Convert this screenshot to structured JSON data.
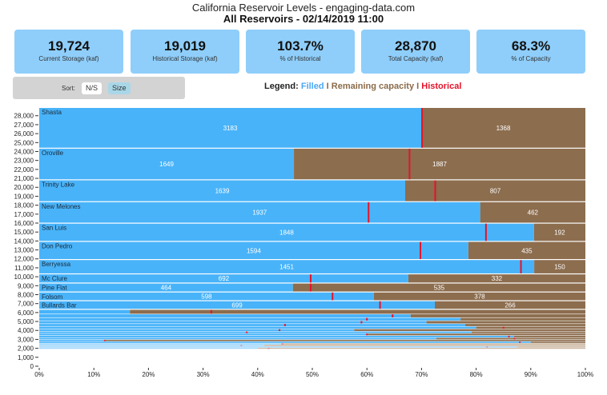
{
  "header": {
    "title": "California Reservoir Levels - engaging-data.com",
    "subtitle": "All Reservoirs - 02/14/2019 11:00"
  },
  "kpis": [
    {
      "value": "19,724",
      "label": "Current Storage (kaf)"
    },
    {
      "value": "19,019",
      "label": "Historical Storage (kaf)"
    },
    {
      "value": "103.7%",
      "label": "% of Historical"
    },
    {
      "value": "28,870",
      "label": "Total Capacity (kaf)"
    },
    {
      "value": "68.3%",
      "label": "% of Capacity"
    }
  ],
  "sort": {
    "label": "Sort:",
    "options": [
      "N/S",
      "Size"
    ],
    "selected": "Size"
  },
  "legend": {
    "prefix": "Legend:",
    "filled": "Filled",
    "separator": "I",
    "remaining": "Remaining capacity",
    "historical": "Historical"
  },
  "colors": {
    "filled": "#48b3f9",
    "remaining": "#8c6d4e",
    "historical": "#e5132a",
    "filled_small": "#8fd0fb",
    "remaining_small": "#c4ab92"
  },
  "chart_data": {
    "type": "bar",
    "orientation": "horizontal-stacked-marimekko",
    "xlabel": "",
    "ylabel": "",
    "x_ticks": [
      "0%",
      "10%",
      "20%",
      "30%",
      "40%",
      "50%",
      "60%",
      "70%",
      "80%",
      "90%",
      "100%"
    ],
    "xlim": [
      0,
      100
    ],
    "y_ticks": [
      "0",
      "1,000",
      "2,000",
      "3,000",
      "4,000",
      "5,000",
      "6,000",
      "7,000",
      "8,000",
      "9,000",
      "10,000",
      "11,000",
      "12,000",
      "13,000",
      "14,000",
      "15,000",
      "16,000",
      "17,000",
      "18,000",
      "19,000",
      "20,000",
      "21,000",
      "22,000",
      "23,000",
      "24,000",
      "25,000",
      "26,000",
      "27,000",
      "28,000"
    ],
    "ylim": [
      0,
      28870
    ],
    "reservoirs": [
      {
        "name": "Shasta",
        "filled": 3183,
        "remaining": 1368,
        "historical_pct": 70.1,
        "show_labels": true
      },
      {
        "name": "Oroville",
        "filled": 1649,
        "remaining": 1887,
        "historical_pct": 67.8,
        "show_labels": true
      },
      {
        "name": "Trinity Lake",
        "filled": 1639,
        "remaining": 807,
        "historical_pct": 72.5,
        "show_labels": true
      },
      {
        "name": "New Melones",
        "filled": 1937,
        "remaining": 462,
        "historical_pct": 60.3,
        "show_labels": true
      },
      {
        "name": "San Luis",
        "filled": 1848,
        "remaining": 192,
        "historical_pct": 81.8,
        "show_labels": true
      },
      {
        "name": "Don Pedro",
        "filled": 1594,
        "remaining": 435,
        "historical_pct": 69.8,
        "show_labels": true
      },
      {
        "name": "Berryessa",
        "filled": 1451,
        "remaining": 150,
        "historical_pct": 88.2,
        "show_labels": true
      },
      {
        "name": "Mc Clure",
        "filled": 692,
        "remaining": 332,
        "historical_pct": 49.7,
        "show_labels": true
      },
      {
        "name": "Pine Flat",
        "filled": 464,
        "remaining": 535,
        "historical_pct": 49.7,
        "show_labels": true
      },
      {
        "name": "Folsom",
        "filled": 598,
        "remaining": 378,
        "historical_pct": 53.7,
        "show_labels": true
      },
      {
        "name": "Bullards Bar",
        "filled": 699,
        "remaining": 266,
        "historical_pct": 62.4,
        "show_labels": true
      },
      {
        "name": "",
        "filled": 83,
        "remaining": 417,
        "historical_pct": 31.5,
        "show_labels": false
      },
      {
        "name": "",
        "filled": 272,
        "remaining": 128,
        "historical_pct": 64.7,
        "show_labels": false
      },
      {
        "name": "",
        "filled": 270,
        "remaining": 80,
        "historical_pct": 60.0,
        "show_labels": false
      },
      {
        "name": "",
        "filled": 234,
        "remaining": 96,
        "historical_pct": 59.0,
        "show_labels": false
      },
      {
        "name": "",
        "filled": 234,
        "remaining": 66,
        "historical_pct": 45.0,
        "show_labels": false
      },
      {
        "name": "",
        "filled": 224,
        "remaining": 56,
        "historical_pct": 85.0,
        "show_labels": false
      },
      {
        "name": "",
        "filled": 150,
        "remaining": 110,
        "historical_pct": 44.0,
        "show_labels": false
      },
      {
        "name": "",
        "filled": 190,
        "remaining": 50,
        "historical_pct": 38.0,
        "show_labels": false
      },
      {
        "name": "",
        "filled": 144,
        "remaining": 96,
        "historical_pct": 60.0,
        "show_labels": false
      },
      {
        "name": "",
        "filled": 200,
        "remaining": 30,
        "historical_pct": 86.0,
        "show_labels": false
      },
      {
        "name": "",
        "filled": 160,
        "remaining": 60,
        "historical_pct": 87.0,
        "show_labels": false
      },
      {
        "name": "",
        "filled": 24,
        "remaining": 176,
        "historical_pct": 12.0,
        "show_labels": false
      },
      {
        "name": "",
        "filled": 180,
        "remaining": 20,
        "historical_pct": 88.0,
        "show_labels": false
      },
      {
        "name": "",
        "filled": 80,
        "remaining": 100,
        "historical_pct": 44.5,
        "show_labels": false
      },
      {
        "name": "",
        "filled": 70,
        "remaining": 100,
        "historical_pct": 37.0,
        "show_labels": false
      },
      {
        "name": "",
        "filled": 140,
        "remaining": 20,
        "historical_pct": 82.0,
        "show_labels": false
      },
      {
        "name": "",
        "filled": 60,
        "remaining": 90,
        "historical_pct": 42.0,
        "show_labels": false
      }
    ]
  }
}
